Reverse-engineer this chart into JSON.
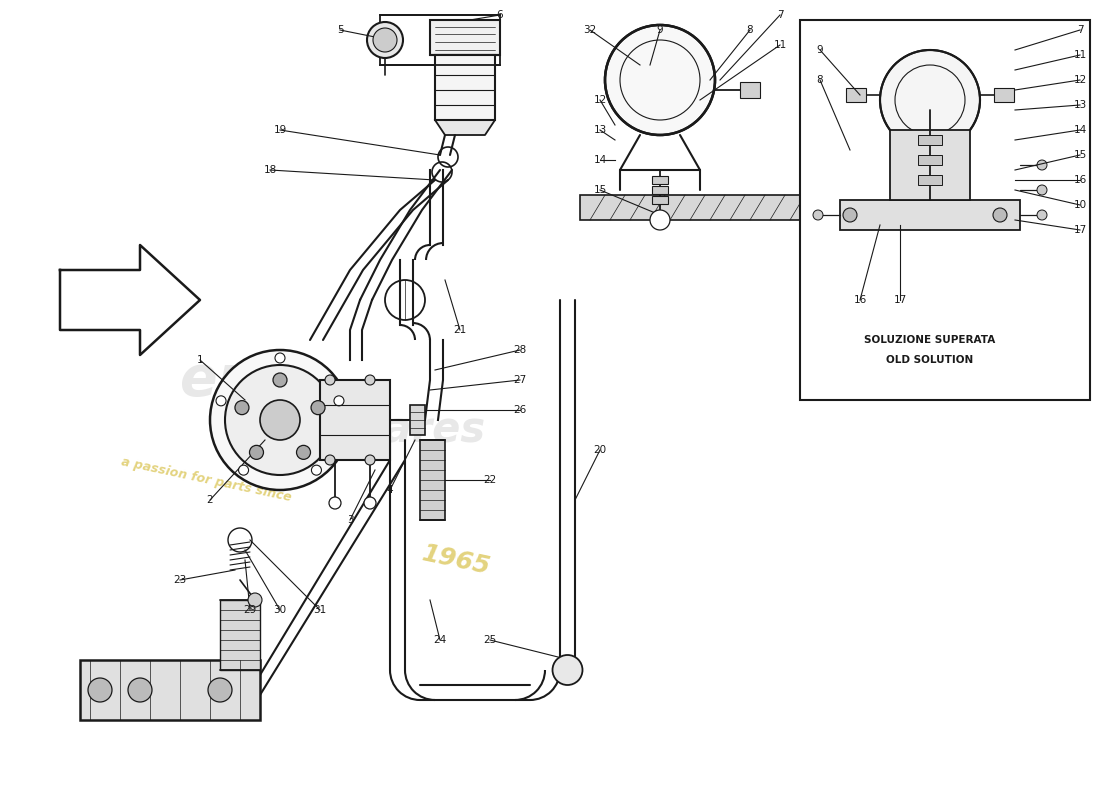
{
  "bg_color": "#ffffff",
  "line_color": "#1a1a1a",
  "box_label_line1": "SOLUZIONE SUPERATA",
  "box_label_line2": "OLD SOLUTION",
  "figsize": [
    11.0,
    8.0
  ],
  "dpi": 100,
  "xlim": [
    0,
    110
  ],
  "ylim": [
    0,
    80
  ]
}
